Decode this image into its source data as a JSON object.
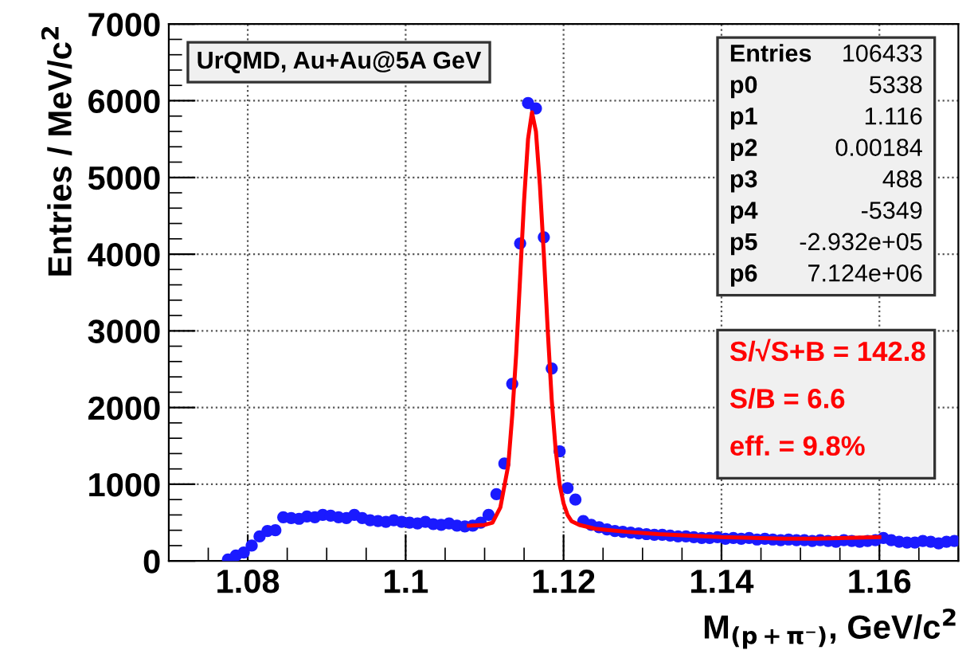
{
  "chart_data": {
    "type": "scatter",
    "xlabel": "M$_{(p+π⁻)}$, GeV/c$^{2}$",
    "ylabel": "Entries / MeV/c$^{2}$",
    "xlim": [
      1.07,
      1.17
    ],
    "xticks": [
      1.08,
      1.1,
      1.12,
      1.14,
      1.16
    ],
    "ylim": [
      0,
      7000
    ],
    "yticks": [
      0,
      1000,
      2000,
      3000,
      4000,
      5000,
      6000,
      7000
    ],
    "grid": true,
    "marker": "circle",
    "annotations": [
      "UrQMD, Au+Au@5A GeV",
      "Entries 106433",
      "p0 5338",
      "p1 1.116",
      "p2 0.00184",
      "p3 488",
      "p4 -5349",
      "p5 -2.932e+05",
      "p6 7.124e+06",
      "S/√S+B = 142.8",
      "S/B = 6.6",
      "eff. = 9.8%"
    ],
    "series": [
      {
        "color": "#1a1aff",
        "x": [
          1.0775,
          1.0785,
          1.0795,
          1.0805,
          1.0815,
          1.0825,
          1.0835,
          1.0845,
          1.0855,
          1.0865,
          1.0875,
          1.0885,
          1.0895,
          1.0905,
          1.0915,
          1.0925,
          1.0935,
          1.0945,
          1.0955,
          1.0965,
          1.0975,
          1.0985,
          1.0995,
          1.1005,
          1.1015,
          1.1025,
          1.1035,
          1.1045,
          1.1055,
          1.1065,
          1.1075,
          1.1085,
          1.1095,
          1.1105,
          1.1115,
          1.1125,
          1.1135,
          1.1145,
          1.1155,
          1.1165,
          1.1175,
          1.1185,
          1.1195,
          1.1205,
          1.1215,
          1.1225,
          1.1235,
          1.1245,
          1.1255,
          1.1265,
          1.1275,
          1.1285,
          1.1295,
          1.1305,
          1.1315,
          1.1325,
          1.1335,
          1.1345,
          1.1355,
          1.1365,
          1.1375,
          1.1385,
          1.1395,
          1.1405,
          1.1415,
          1.1425,
          1.1435,
          1.1445,
          1.1455,
          1.1465,
          1.1475,
          1.1485,
          1.1495,
          1.1505,
          1.1515,
          1.1525,
          1.1535,
          1.1545,
          1.1555,
          1.1565,
          1.1575,
          1.1585,
          1.1595,
          1.1605,
          1.1615,
          1.1625,
          1.1635,
          1.1645,
          1.1655,
          1.1665,
          1.1675,
          1.1685,
          1.1695
        ],
        "values": [
          20,
          70,
          110,
          200,
          320,
          390,
          400,
          570,
          560,
          550,
          580,
          570,
          600,
          590,
          570,
          560,
          600,
          560,
          530,
          520,
          510,
          530,
          510,
          500,
          490,
          510,
          480,
          470,
          490,
          460,
          450,
          460,
          500,
          600,
          870,
          1270,
          2310,
          4140,
          5970,
          5900,
          4220,
          2510,
          1430,
          950,
          800,
          520,
          470,
          440,
          410,
          390,
          380,
          370,
          360,
          350,
          340,
          340,
          330,
          320,
          320,
          310,
          300,
          300,
          310,
          290,
          300,
          290,
          300,
          280,
          290,
          280,
          270,
          280,
          270,
          270,
          260,
          270,
          260,
          250,
          270,
          260,
          250,
          260,
          270,
          300,
          270,
          250,
          240,
          240,
          260,
          250,
          230,
          250,
          260
        ]
      },
      {
        "type": "line",
        "color": "#ff0000",
        "marker": "none",
        "line_style": "solid",
        "x": [
          1.108,
          1.11,
          1.111,
          1.112,
          1.113,
          1.1135,
          1.114,
          1.1145,
          1.115,
          1.1155,
          1.116,
          1.1165,
          1.117,
          1.1175,
          1.118,
          1.1185,
          1.119,
          1.1195,
          1.12,
          1.1205,
          1.121,
          1.122,
          1.124,
          1.128,
          1.132,
          1.136,
          1.14,
          1.144,
          1.148,
          1.152,
          1.156,
          1.16
        ],
        "values": [
          460,
          470,
          500,
          700,
          1250,
          1900,
          2700,
          3700,
          4700,
          5500,
          5850,
          5600,
          4900,
          4000,
          3000,
          2100,
          1450,
          1000,
          750,
          600,
          520,
          470,
          420,
          380,
          350,
          330,
          310,
          300,
          290,
          290,
          300,
          310
        ]
      }
    ]
  }
}
